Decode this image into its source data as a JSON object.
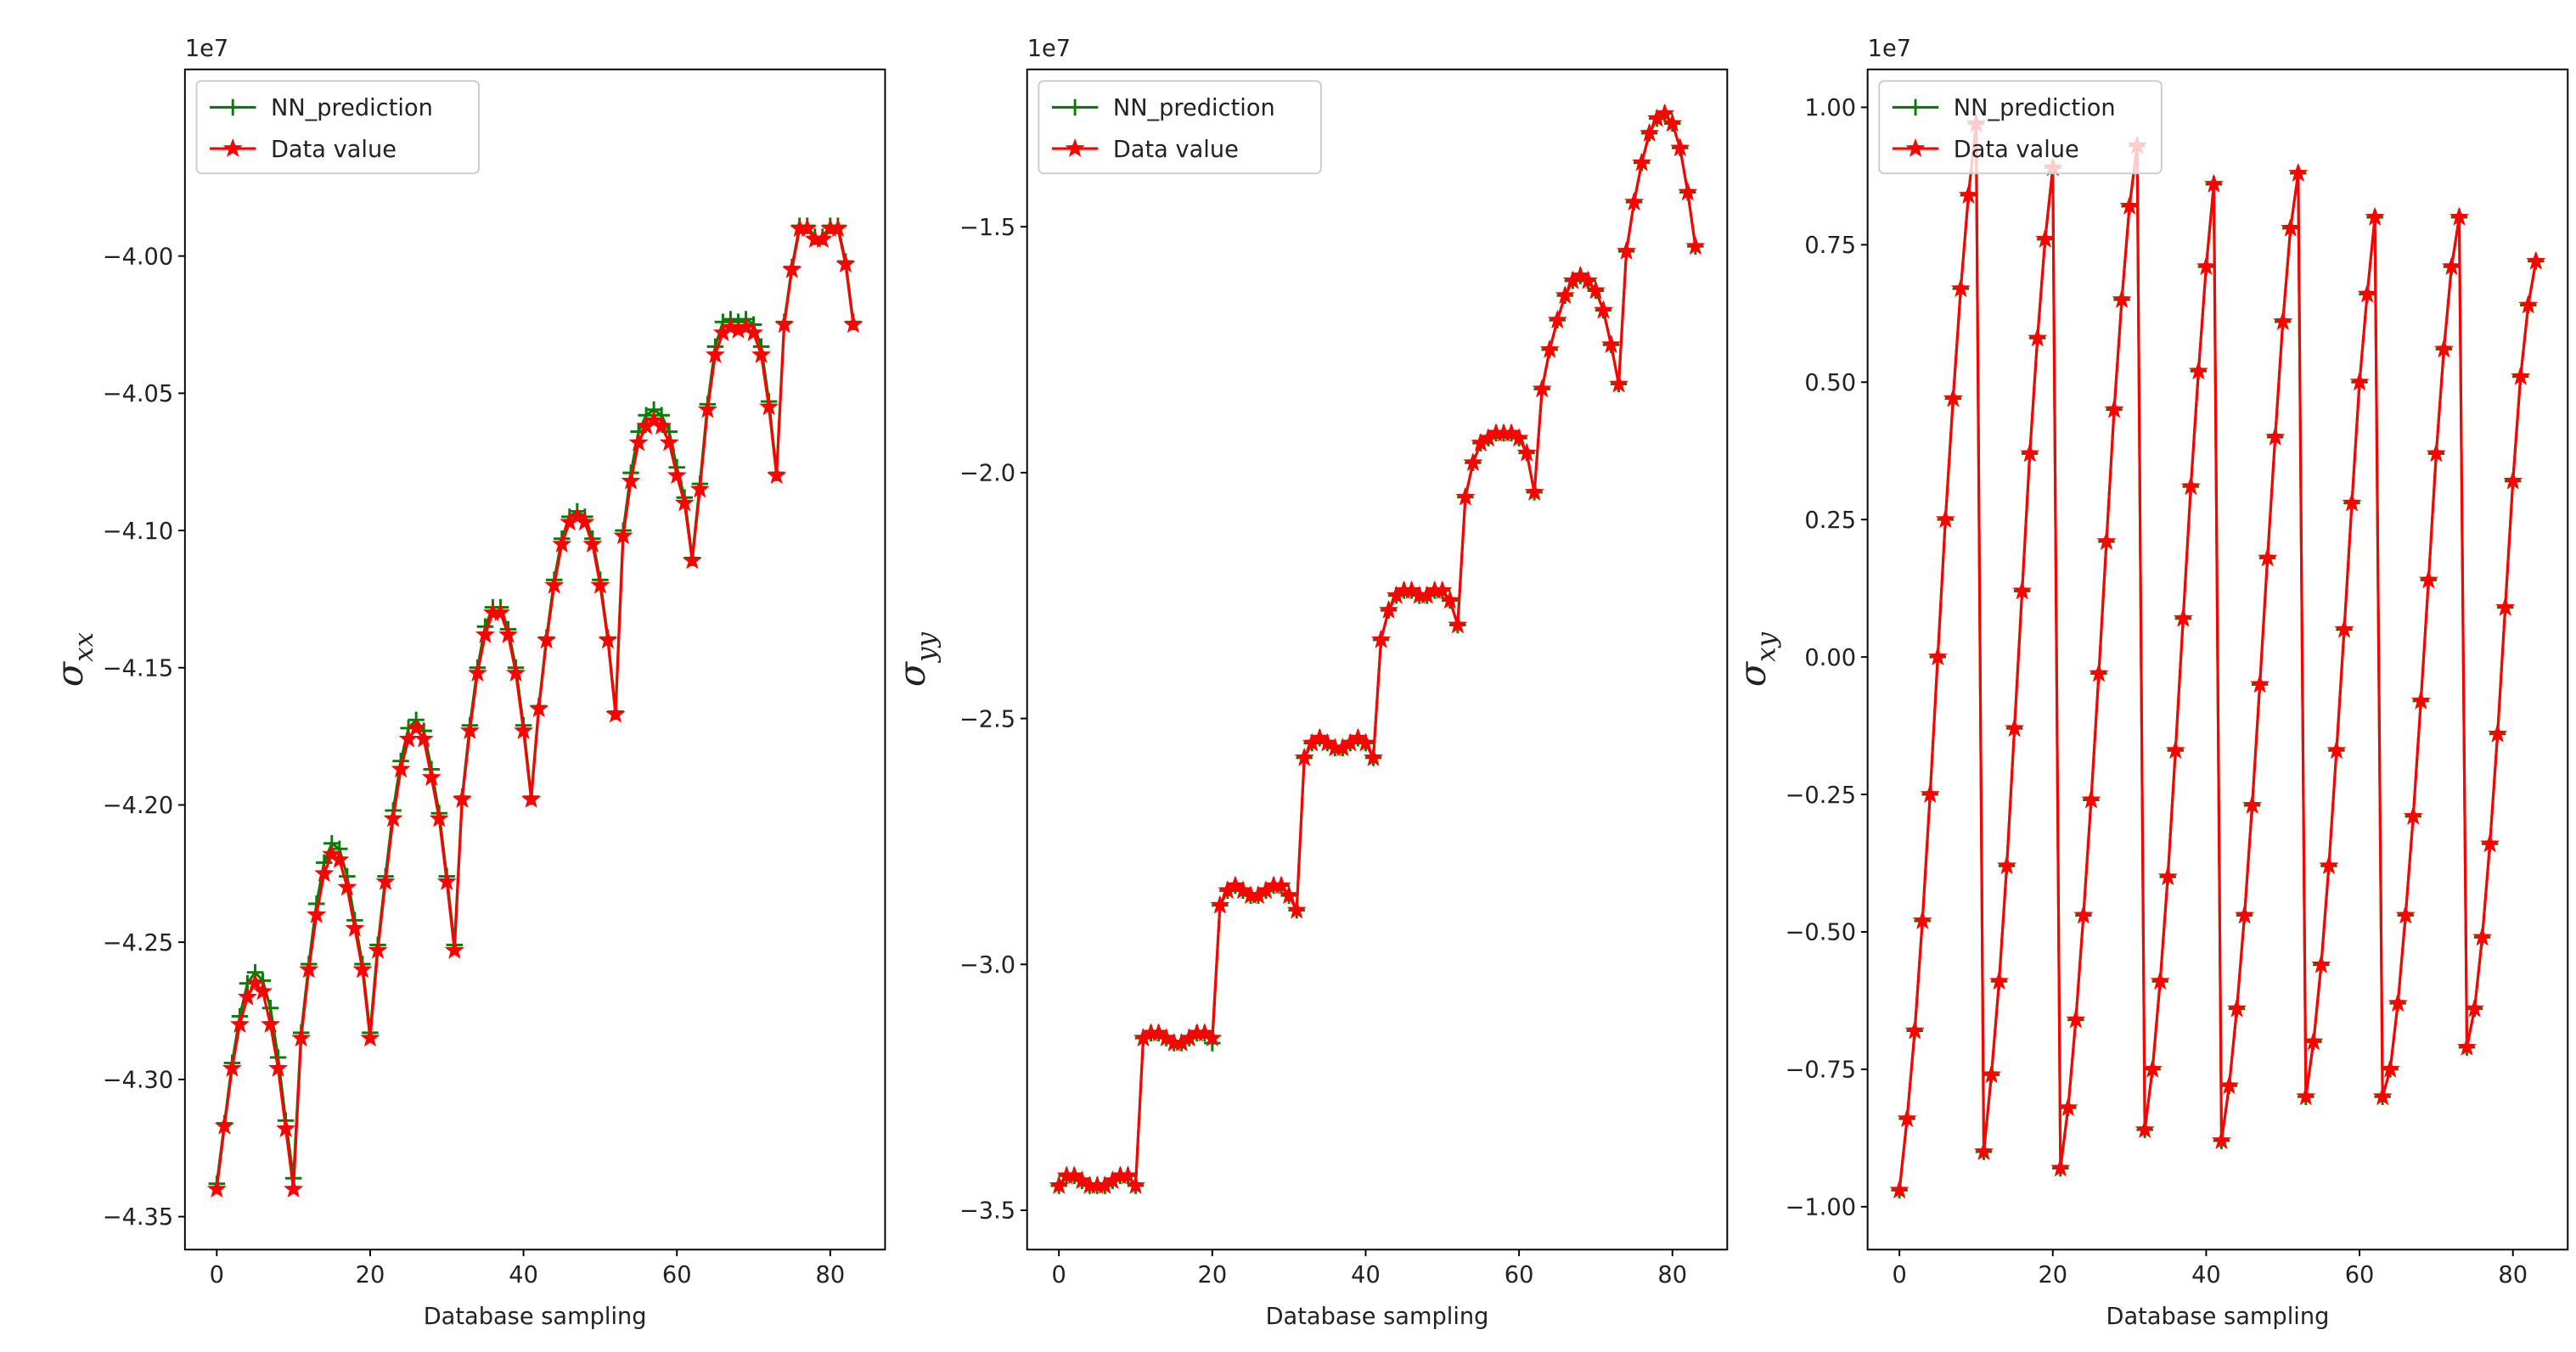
{
  "chart_data": [
    {
      "type": "line",
      "offset_text": "1e7",
      "xlabel": "Database sampling",
      "ylabel": {
        "symbol": "σ",
        "subscript": "xx"
      },
      "x": [
        0,
        1,
        2,
        3,
        4,
        5,
        6,
        7,
        8,
        9,
        10,
        11,
        12,
        13,
        14,
        15,
        16,
        17,
        18,
        19,
        20,
        21,
        22,
        23,
        24,
        25,
        26,
        27,
        28,
        29,
        30,
        31,
        32,
        33,
        34,
        35,
        36,
        37,
        38,
        39,
        40,
        41,
        42,
        43,
        44,
        45,
        46,
        47,
        48,
        49,
        50,
        51,
        52,
        53,
        54,
        55,
        56,
        57,
        58,
        59,
        60,
        61,
        62,
        63,
        64,
        65,
        66,
        67,
        68,
        69,
        70,
        71,
        72,
        73,
        74,
        75,
        76,
        77,
        78,
        79,
        80,
        81,
        82,
        83
      ],
      "series": [
        {
          "name": "NN_prediction",
          "color": "#008000",
          "marker": "plus",
          "values": [
            -4.338,
            -4.316,
            -4.294,
            -4.277,
            -4.265,
            -4.261,
            -4.264,
            -4.274,
            -4.292,
            -4.315,
            -4.336,
            -4.283,
            -4.258,
            -4.236,
            -4.221,
            -4.214,
            -4.216,
            -4.226,
            -4.242,
            -4.258,
            -4.283,
            -4.251,
            -4.226,
            -4.202,
            -4.184,
            -4.172,
            -4.169,
            -4.173,
            -4.187,
            -4.203,
            -4.226,
            -4.251,
            -4.197,
            -4.171,
            -4.15,
            -4.135,
            -4.128,
            -4.128,
            -4.136,
            -4.15,
            -4.171,
            -4.197,
            -4.164,
            -4.139,
            -4.118,
            -4.103,
            -4.095,
            -4.093,
            -4.095,
            -4.103,
            -4.118,
            -4.139,
            -4.166,
            -4.1,
            -4.079,
            -4.064,
            -4.058,
            -4.056,
            -4.058,
            -4.064,
            -4.077,
            -4.088,
            -4.11,
            -4.083,
            -4.054,
            -4.033,
            -4.024,
            -4.023,
            -4.024,
            -4.023,
            -4.025,
            -4.033,
            -4.053,
            -4.079,
            -4.024,
            -4.004,
            -3.989,
            -3.989,
            -3.993,
            -3.993,
            -3.989,
            -3.989,
            -4.002,
            -4.024
          ]
        },
        {
          "name": "Data value",
          "color": "#ff0000",
          "marker": "star",
          "values": [
            -4.34,
            -4.317,
            -4.296,
            -4.28,
            -4.27,
            -4.265,
            -4.268,
            -4.28,
            -4.296,
            -4.318,
            -4.34,
            -4.285,
            -4.26,
            -4.24,
            -4.225,
            -4.218,
            -4.22,
            -4.23,
            -4.245,
            -4.26,
            -4.285,
            -4.253,
            -4.228,
            -4.205,
            -4.187,
            -4.176,
            -4.172,
            -4.176,
            -4.19,
            -4.205,
            -4.228,
            -4.253,
            -4.198,
            -4.173,
            -4.152,
            -4.138,
            -4.13,
            -4.13,
            -4.138,
            -4.152,
            -4.173,
            -4.198,
            -4.165,
            -4.14,
            -4.12,
            -4.105,
            -4.097,
            -4.095,
            -4.097,
            -4.105,
            -4.12,
            -4.14,
            -4.167,
            -4.102,
            -4.082,
            -4.068,
            -4.062,
            -4.06,
            -4.062,
            -4.068,
            -4.08,
            -4.09,
            -4.111,
            -4.085,
            -4.056,
            -4.036,
            -4.028,
            -4.026,
            -4.027,
            -4.026,
            -4.028,
            -4.036,
            -4.055,
            -4.08,
            -4.025,
            -4.005,
            -3.99,
            -3.99,
            -3.994,
            -3.994,
            -3.99,
            -3.99,
            -4.003,
            -4.025
          ]
        }
      ],
      "xlim": [
        -4.15,
        87.15
      ],
      "xticks": [
        0,
        20,
        40,
        60,
        80
      ],
      "ylim": [
        -4.362,
        -3.932
      ],
      "yticks": [
        {
          "value": -4.0,
          "label": "−4.00"
        },
        {
          "value": -4.05,
          "label": "−4.05"
        },
        {
          "value": -4.1,
          "label": "−4.10"
        },
        {
          "value": -4.15,
          "label": "−4.15"
        },
        {
          "value": -4.2,
          "label": "−4.20"
        },
        {
          "value": -4.25,
          "label": "−4.25"
        },
        {
          "value": -4.3,
          "label": "−4.30"
        },
        {
          "value": -4.35,
          "label": "−4.35"
        }
      ],
      "legend": "upper left"
    },
    {
      "type": "line",
      "offset_text": "1e7",
      "xlabel": "Database sampling",
      "ylabel": {
        "symbol": "σ",
        "subscript": "yy"
      },
      "x": [
        0,
        1,
        2,
        3,
        4,
        5,
        6,
        7,
        8,
        9,
        10,
        11,
        12,
        13,
        14,
        15,
        16,
        17,
        18,
        19,
        20,
        21,
        22,
        23,
        24,
        25,
        26,
        27,
        28,
        29,
        30,
        31,
        32,
        33,
        34,
        35,
        36,
        37,
        38,
        39,
        40,
        41,
        42,
        43,
        44,
        45,
        46,
        47,
        48,
        49,
        50,
        51,
        52,
        53,
        54,
        55,
        56,
        57,
        58,
        59,
        60,
        61,
        62,
        63,
        64,
        65,
        66,
        67,
        68,
        69,
        70,
        71,
        72,
        73,
        74,
        75,
        76,
        77,
        78,
        79,
        80,
        81,
        82,
        83
      ],
      "series": [
        {
          "name": "NN_prediction",
          "color": "#008000",
          "marker": "plus",
          "values": [
            -3.45,
            -3.43,
            -3.43,
            -3.44,
            -3.45,
            -3.45,
            -3.45,
            -3.44,
            -3.43,
            -3.43,
            -3.45,
            -3.15,
            -3.14,
            -3.14,
            -3.15,
            -3.16,
            -3.16,
            -3.15,
            -3.14,
            -3.14,
            -3.16,
            -2.88,
            -2.85,
            -2.84,
            -2.85,
            -2.86,
            -2.86,
            -2.85,
            -2.84,
            -2.84,
            -2.86,
            -2.89,
            -2.58,
            -2.55,
            -2.54,
            -2.55,
            -2.56,
            -2.56,
            -2.55,
            -2.54,
            -2.55,
            -2.58,
            -2.34,
            -2.28,
            -2.25,
            -2.24,
            -2.24,
            -2.25,
            -2.25,
            -2.24,
            -2.24,
            -2.26,
            -2.31,
            -2.05,
            -1.98,
            -1.94,
            -1.93,
            -1.92,
            -1.92,
            -1.92,
            -1.93,
            -1.96,
            -2.04,
            -1.83,
            -1.75,
            -1.69,
            -1.64,
            -1.61,
            -1.6,
            -1.61,
            -1.63,
            -1.67,
            -1.74,
            -1.82,
            -1.55,
            -1.45,
            -1.37,
            -1.31,
            -1.28,
            -1.27,
            -1.29,
            -1.34,
            -1.43,
            -1.54
          ]
        },
        {
          "name": "Data value",
          "color": "#ff0000",
          "marker": "star",
          "values": [
            -3.45,
            -3.43,
            -3.43,
            -3.44,
            -3.45,
            -3.45,
            -3.45,
            -3.44,
            -3.43,
            -3.43,
            -3.45,
            -3.15,
            -3.14,
            -3.14,
            -3.15,
            -3.16,
            -3.16,
            -3.15,
            -3.14,
            -3.14,
            -3.15,
            -2.88,
            -2.85,
            -2.84,
            -2.85,
            -2.86,
            -2.86,
            -2.85,
            -2.84,
            -2.84,
            -2.86,
            -2.89,
            -2.58,
            -2.55,
            -2.54,
            -2.55,
            -2.56,
            -2.56,
            -2.55,
            -2.54,
            -2.55,
            -2.58,
            -2.34,
            -2.28,
            -2.25,
            -2.24,
            -2.24,
            -2.25,
            -2.25,
            -2.24,
            -2.24,
            -2.26,
            -2.31,
            -2.05,
            -1.98,
            -1.94,
            -1.93,
            -1.92,
            -1.92,
            -1.92,
            -1.93,
            -1.96,
            -2.04,
            -1.83,
            -1.75,
            -1.69,
            -1.64,
            -1.61,
            -1.6,
            -1.61,
            -1.63,
            -1.67,
            -1.74,
            -1.82,
            -1.55,
            -1.45,
            -1.37,
            -1.31,
            -1.28,
            -1.27,
            -1.29,
            -1.34,
            -1.43,
            -1.54
          ]
        }
      ],
      "xlim": [
        -4.15,
        87.15
      ],
      "xticks": [
        0,
        20,
        40,
        60,
        80
      ],
      "ylim": [
        -3.58,
        -1.18
      ],
      "yticks": [
        {
          "value": -1.5,
          "label": "−1.5"
        },
        {
          "value": -2.0,
          "label": "−2.0"
        },
        {
          "value": -2.5,
          "label": "−2.5"
        },
        {
          "value": -3.0,
          "label": "−3.0"
        },
        {
          "value": -3.5,
          "label": "−3.5"
        }
      ],
      "legend": "upper left"
    },
    {
      "type": "line",
      "offset_text": "1e7",
      "xlabel": "Database sampling",
      "ylabel": {
        "symbol": "σ",
        "subscript": "xy"
      },
      "x": [
        0,
        1,
        2,
        3,
        4,
        5,
        6,
        7,
        8,
        9,
        10,
        11,
        12,
        13,
        14,
        15,
        16,
        17,
        18,
        19,
        20,
        21,
        22,
        23,
        24,
        25,
        26,
        27,
        28,
        29,
        30,
        31,
        32,
        33,
        34,
        35,
        36,
        37,
        38,
        39,
        40,
        41,
        42,
        43,
        44,
        45,
        46,
        47,
        48,
        49,
        50,
        51,
        52,
        53,
        54,
        55,
        56,
        57,
        58,
        59,
        60,
        61,
        62,
        63,
        64,
        65,
        66,
        67,
        68,
        69,
        70,
        71,
        72,
        73,
        74,
        75,
        76,
        77,
        78,
        79,
        80,
        81,
        82,
        83
      ],
      "series": [
        {
          "name": "NN_prediction",
          "color": "#008000",
          "marker": "plus",
          "values": [
            -0.97,
            -0.84,
            -0.68,
            -0.48,
            -0.25,
            0.0,
            0.25,
            0.47,
            0.67,
            0.84,
            0.97,
            -0.9,
            -0.76,
            -0.59,
            -0.38,
            -0.13,
            0.12,
            0.37,
            0.58,
            0.76,
            0.89,
            -0.93,
            -0.82,
            -0.66,
            -0.47,
            -0.26,
            -0.03,
            0.21,
            0.45,
            0.65,
            0.82,
            0.93,
            -0.86,
            -0.75,
            -0.59,
            -0.4,
            -0.17,
            0.07,
            0.31,
            0.52,
            0.71,
            0.86,
            -0.88,
            -0.78,
            -0.64,
            -0.47,
            -0.27,
            -0.05,
            0.18,
            0.4,
            0.61,
            0.78,
            0.88,
            -0.8,
            -0.7,
            -0.56,
            -0.38,
            -0.17,
            0.05,
            0.28,
            0.5,
            0.66,
            0.8,
            -0.8,
            -0.75,
            -0.63,
            -0.47,
            -0.29,
            -0.08,
            0.14,
            0.37,
            0.56,
            0.71,
            0.8,
            -0.71,
            -0.64,
            -0.51,
            -0.34,
            -0.14,
            0.09,
            0.32,
            0.51,
            0.64,
            0.72
          ]
        },
        {
          "name": "Data value",
          "color": "#ff0000",
          "marker": "star",
          "values": [
            -0.97,
            -0.84,
            -0.68,
            -0.48,
            -0.25,
            0.0,
            0.25,
            0.47,
            0.67,
            0.84,
            0.97,
            -0.9,
            -0.76,
            -0.59,
            -0.38,
            -0.13,
            0.12,
            0.37,
            0.58,
            0.76,
            0.89,
            -0.93,
            -0.82,
            -0.66,
            -0.47,
            -0.26,
            -0.03,
            0.21,
            0.45,
            0.65,
            0.82,
            0.93,
            -0.86,
            -0.75,
            -0.59,
            -0.4,
            -0.17,
            0.07,
            0.31,
            0.52,
            0.71,
            0.86,
            -0.88,
            -0.78,
            -0.64,
            -0.47,
            -0.27,
            -0.05,
            0.18,
            0.4,
            0.61,
            0.78,
            0.88,
            -0.8,
            -0.7,
            -0.56,
            -0.38,
            -0.17,
            0.05,
            0.28,
            0.5,
            0.66,
            0.8,
            -0.8,
            -0.75,
            -0.63,
            -0.47,
            -0.29,
            -0.08,
            0.14,
            0.37,
            0.56,
            0.71,
            0.8,
            -0.71,
            -0.64,
            -0.51,
            -0.34,
            -0.14,
            0.09,
            0.32,
            0.51,
            0.64,
            0.72
          ]
        }
      ],
      "xlim": [
        -4.15,
        87.15
      ],
      "xticks": [
        0,
        20,
        40,
        60,
        80
      ],
      "ylim": [
        -1.078,
        1.069
      ],
      "yticks": [
        {
          "value": 1.0,
          "label": "1.00"
        },
        {
          "value": 0.75,
          "label": "0.75"
        },
        {
          "value": 0.5,
          "label": "0.50"
        },
        {
          "value": 0.25,
          "label": "0.25"
        },
        {
          "value": 0.0,
          "label": "0.00"
        },
        {
          "value": -0.25,
          "label": "−0.25"
        },
        {
          "value": -0.5,
          "label": "−0.50"
        },
        {
          "value": -0.75,
          "label": "−0.75"
        },
        {
          "value": -1.0,
          "label": "−1.00"
        }
      ],
      "legend": "upper left"
    }
  ]
}
